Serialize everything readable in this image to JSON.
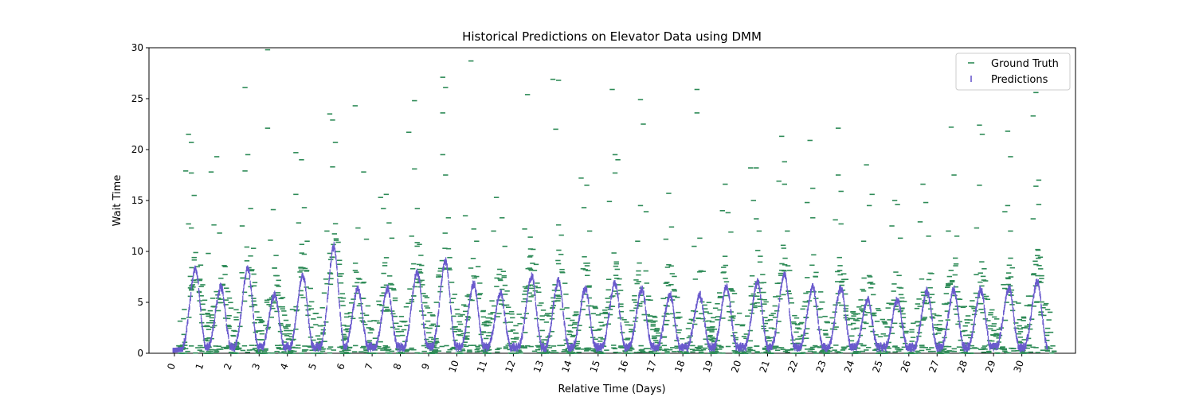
{
  "chart_data": {
    "type": "scatter",
    "title": "Historical Predictions on Elevator Data using DMM",
    "xlabel": "Relative Time (Days)",
    "ylabel": "Wait Time",
    "xlim": [
      -0.9,
      31.9
    ],
    "ylim": [
      0,
      30
    ],
    "x_ticks": [
      0,
      1,
      2,
      3,
      4,
      5,
      6,
      7,
      8,
      9,
      10,
      11,
      12,
      13,
      14,
      15,
      16,
      17,
      18,
      19,
      20,
      21,
      22,
      23,
      24,
      25,
      26,
      27,
      28,
      29,
      30
    ],
    "y_ticks": [
      0,
      5,
      10,
      15,
      20,
      25,
      30
    ],
    "grid": false,
    "legend_position": "top-right",
    "series": [
      {
        "name": "Ground Truth",
        "marker": "_",
        "color": "#2e8b57",
        "points": [
          [
            0.5,
            21.5
          ],
          [
            0.6,
            20.7
          ],
          [
            0.4,
            17.9
          ],
          [
            0.6,
            17.7
          ],
          [
            0.7,
            15.5
          ],
          [
            0.5,
            12.7
          ],
          [
            0.6,
            12.3
          ],
          [
            0.7,
            9.4
          ],
          [
            0.8,
            7.2
          ],
          [
            1.5,
            19.3
          ],
          [
            1.3,
            17.8
          ],
          [
            1.4,
            12.6
          ],
          [
            1.6,
            11.8
          ],
          [
            1.2,
            9.8
          ],
          [
            1.8,
            8.5
          ],
          [
            2.5,
            26.1
          ],
          [
            2.6,
            19.5
          ],
          [
            2.5,
            17.9
          ],
          [
            2.7,
            14.2
          ],
          [
            2.4,
            12.5
          ],
          [
            2.8,
            10.3
          ],
          [
            3.3,
            29.8
          ],
          [
            3.3,
            22.1
          ],
          [
            3.5,
            14.1
          ],
          [
            3.4,
            11.1
          ],
          [
            3.6,
            9.6
          ],
          [
            4.3,
            19.7
          ],
          [
            4.5,
            19.0
          ],
          [
            4.3,
            15.6
          ],
          [
            4.6,
            14.3
          ],
          [
            4.4,
            12.8
          ],
          [
            4.7,
            11.0
          ],
          [
            5.5,
            23.5
          ],
          [
            5.6,
            22.9
          ],
          [
            5.7,
            20.7
          ],
          [
            5.6,
            18.3
          ],
          [
            5.4,
            12.0
          ],
          [
            5.8,
            10.9
          ],
          [
            6.4,
            24.3
          ],
          [
            6.7,
            17.8
          ],
          [
            6.5,
            12.3
          ],
          [
            6.8,
            11.2
          ],
          [
            7.3,
            15.3
          ],
          [
            7.5,
            15.6
          ],
          [
            7.4,
            14.2
          ],
          [
            7.6,
            12.8
          ],
          [
            7.7,
            11.3
          ],
          [
            8.5,
            24.8
          ],
          [
            8.3,
            21.7
          ],
          [
            8.5,
            18.1
          ],
          [
            8.6,
            14.2
          ],
          [
            8.4,
            11.5
          ],
          [
            9.5,
            27.1
          ],
          [
            9.6,
            26.1
          ],
          [
            9.5,
            23.6
          ],
          [
            9.5,
            19.5
          ],
          [
            9.6,
            17.5
          ],
          [
            9.7,
            13.3
          ],
          [
            10.5,
            28.7
          ],
          [
            10.3,
            13.5
          ],
          [
            10.6,
            12.2
          ],
          [
            10.7,
            11.0
          ],
          [
            11.4,
            15.3
          ],
          [
            11.6,
            13.3
          ],
          [
            11.3,
            12.0
          ],
          [
            11.7,
            10.5
          ],
          [
            12.5,
            25.4
          ],
          [
            12.4,
            12.2
          ],
          [
            12.6,
            11.4
          ],
          [
            12.7,
            10.2
          ],
          [
            13.4,
            26.9
          ],
          [
            13.6,
            26.8
          ],
          [
            13.5,
            22.0
          ],
          [
            13.6,
            12.6
          ],
          [
            13.7,
            11.6
          ],
          [
            14.4,
            17.2
          ],
          [
            14.6,
            16.5
          ],
          [
            14.5,
            14.3
          ],
          [
            14.7,
            12.0
          ],
          [
            15.5,
            25.9
          ],
          [
            15.6,
            19.5
          ],
          [
            15.7,
            19.0
          ],
          [
            15.6,
            17.7
          ],
          [
            15.4,
            14.9
          ],
          [
            16.5,
            24.9
          ],
          [
            16.6,
            22.5
          ],
          [
            16.5,
            14.5
          ],
          [
            16.7,
            13.9
          ],
          [
            16.4,
            11.0
          ],
          [
            17.5,
            15.7
          ],
          [
            17.6,
            12.4
          ],
          [
            17.4,
            11.2
          ],
          [
            18.5,
            25.9
          ],
          [
            18.5,
            23.6
          ],
          [
            18.6,
            11.3
          ],
          [
            18.4,
            10.5
          ],
          [
            19.5,
            16.6
          ],
          [
            19.4,
            14.0
          ],
          [
            19.6,
            13.8
          ],
          [
            19.7,
            11.9
          ],
          [
            20.4,
            18.2
          ],
          [
            20.6,
            18.2
          ],
          [
            20.5,
            15.0
          ],
          [
            20.6,
            13.2
          ],
          [
            20.7,
            12.0
          ],
          [
            21.5,
            21.3
          ],
          [
            21.6,
            18.8
          ],
          [
            21.4,
            16.9
          ],
          [
            21.6,
            16.6
          ],
          [
            21.7,
            12.0
          ],
          [
            22.5,
            20.9
          ],
          [
            22.6,
            16.2
          ],
          [
            22.4,
            14.8
          ],
          [
            22.6,
            13.3
          ],
          [
            23.5,
            22.1
          ],
          [
            23.5,
            17.5
          ],
          [
            23.6,
            15.9
          ],
          [
            23.4,
            13.1
          ],
          [
            23.6,
            12.7
          ],
          [
            24.5,
            18.5
          ],
          [
            24.7,
            15.6
          ],
          [
            24.6,
            14.5
          ],
          [
            24.4,
            11.0
          ],
          [
            25.5,
            15.0
          ],
          [
            25.6,
            14.6
          ],
          [
            25.4,
            12.5
          ],
          [
            25.7,
            11.3
          ],
          [
            26.5,
            16.6
          ],
          [
            26.6,
            14.8
          ],
          [
            26.4,
            12.9
          ],
          [
            26.7,
            11.5
          ],
          [
            27.5,
            22.2
          ],
          [
            27.6,
            17.5
          ],
          [
            27.4,
            12.0
          ],
          [
            27.7,
            11.5
          ],
          [
            28.5,
            22.4
          ],
          [
            28.6,
            21.5
          ],
          [
            28.5,
            16.5
          ],
          [
            28.4,
            12.3
          ],
          [
            29.5,
            21.8
          ],
          [
            29.6,
            19.3
          ],
          [
            29.5,
            14.5
          ],
          [
            29.4,
            13.9
          ],
          [
            29.6,
            12.0
          ],
          [
            30.5,
            25.6
          ],
          [
            30.4,
            23.3
          ],
          [
            30.6,
            17.0
          ],
          [
            30.5,
            16.4
          ],
          [
            30.6,
            14.6
          ],
          [
            30.4,
            13.2
          ],
          [
            0.2,
            0.4
          ],
          [
            0.9,
            0.3
          ],
          [
            1.5,
            0.2
          ],
          [
            2.3,
            0.5
          ],
          [
            3.0,
            0.3
          ],
          [
            3.8,
            0.4
          ],
          [
            4.6,
            0.2
          ],
          [
            5.2,
            0.6
          ],
          [
            6.1,
            0.3
          ],
          [
            6.9,
            0.4
          ],
          [
            7.7,
            0.2
          ],
          [
            8.4,
            0.5
          ],
          [
            9.2,
            0.3
          ],
          [
            10.0,
            0.4
          ],
          [
            10.8,
            0.2
          ],
          [
            11.5,
            0.5
          ],
          [
            12.2,
            0.3
          ],
          [
            13.1,
            0.4
          ],
          [
            13.9,
            0.2
          ],
          [
            14.6,
            0.5
          ],
          [
            15.3,
            0.3
          ],
          [
            16.2,
            0.4
          ],
          [
            17.0,
            0.2
          ],
          [
            17.8,
            0.5
          ],
          [
            18.5,
            0.3
          ],
          [
            19.3,
            0.4
          ],
          [
            20.1,
            0.2
          ],
          [
            20.9,
            0.5
          ],
          [
            21.7,
            0.3
          ],
          [
            22.4,
            0.4
          ],
          [
            23.2,
            0.2
          ],
          [
            24.0,
            0.5
          ],
          [
            24.8,
            0.3
          ],
          [
            25.6,
            0.4
          ],
          [
            26.3,
            0.2
          ],
          [
            27.1,
            0.5
          ],
          [
            27.9,
            0.3
          ],
          [
            28.7,
            0.4
          ],
          [
            29.4,
            0.2
          ],
          [
            30.2,
            0.5
          ],
          [
            30.9,
            0.3
          ]
        ]
      },
      {
        "name": "Predictions",
        "marker": "|",
        "color": "#6a5acd",
        "peaks": [
          [
            0.75,
            8.3
          ],
          [
            1.65,
            6.5
          ],
          [
            2.6,
            8.3
          ],
          [
            3.55,
            5.8
          ],
          [
            4.55,
            7.6
          ],
          [
            5.65,
            10.5
          ],
          [
            6.5,
            6.3
          ],
          [
            7.55,
            6.3
          ],
          [
            8.6,
            8.0
          ],
          [
            9.6,
            9.0
          ],
          [
            10.6,
            6.8
          ],
          [
            11.55,
            5.9
          ],
          [
            12.65,
            7.6
          ],
          [
            13.6,
            7.1
          ],
          [
            14.55,
            6.3
          ],
          [
            15.6,
            6.9
          ],
          [
            16.55,
            6.3
          ],
          [
            17.55,
            5.7
          ],
          [
            18.6,
            5.7
          ],
          [
            19.55,
            6.5
          ],
          [
            20.65,
            7.0
          ],
          [
            21.6,
            7.8
          ],
          [
            22.6,
            6.5
          ],
          [
            23.6,
            6.4
          ],
          [
            24.55,
            5.2
          ],
          [
            25.6,
            5.2
          ],
          [
            26.65,
            6.1
          ],
          [
            27.6,
            6.2
          ],
          [
            28.55,
            6.2
          ],
          [
            29.55,
            6.4
          ],
          [
            30.55,
            7.0
          ]
        ]
      }
    ]
  }
}
